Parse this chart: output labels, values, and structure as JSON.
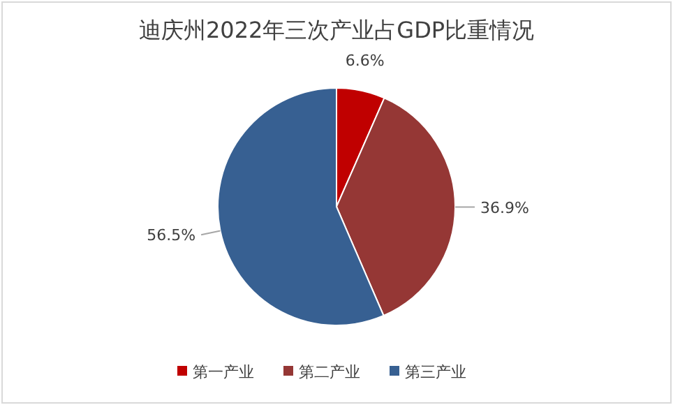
{
  "chart_data": {
    "type": "pie",
    "title": "迪庆州2022年三次产业占GDP比重情况",
    "categories": [
      "第一产业",
      "第二产业",
      "第三产业"
    ],
    "values": [
      6.6,
      36.9,
      56.5
    ],
    "colors": [
      "#c00000",
      "#953735",
      "#376092"
    ],
    "value_labels": [
      "6.6%",
      "36.9%",
      "56.5%"
    ],
    "legend": "bottom"
  }
}
